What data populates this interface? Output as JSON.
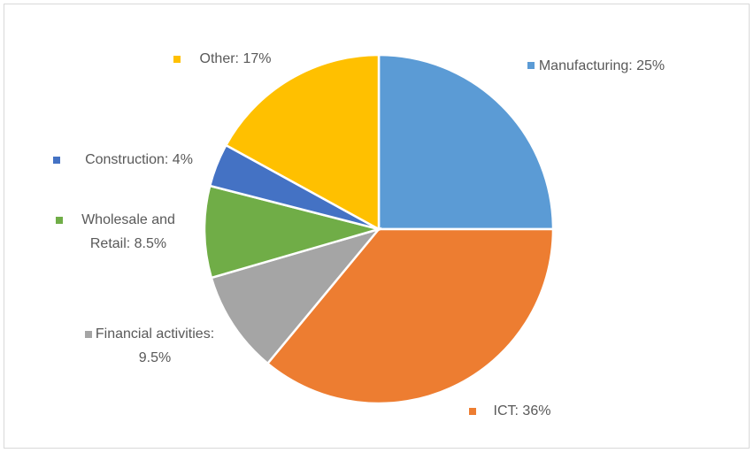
{
  "chart_data": {
    "type": "pie",
    "values": [
      25,
      36,
      9.5,
      8.5,
      4,
      17
    ],
    "value_labels": [
      "Manufacturing: 25%",
      "ICT: 36%",
      "Financial activities: 9.5%",
      "Wholesale and Retail: 8.5%",
      "Construction: 4%",
      "Other: 17%"
    ],
    "colors": [
      "#5b9bd5",
      "#ed7d31",
      "#a5a5a5",
      "#70ad47",
      "#4472c4",
      "#ffc000"
    ]
  }
}
